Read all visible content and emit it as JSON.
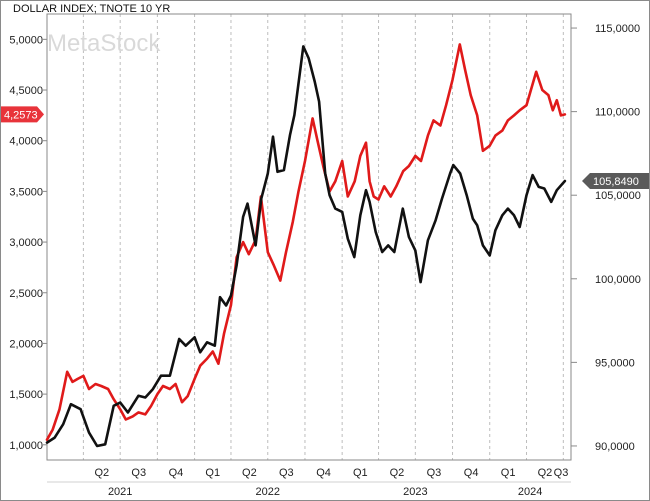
{
  "title": "DOLLAR INDEX; TNOTE 10 YR",
  "watermark": "MetaStock",
  "colors": {
    "dollar_index": "#111111",
    "tnote": "#e01a1a",
    "grid": "#bdbdbd",
    "frame": "#8a8a8a",
    "dollar_tag": "#5a5a5a",
    "tnote_tag": "#e8333a"
  },
  "chart_data": {
    "type": "line",
    "grid": true,
    "left_axis": {
      "ylim": [
        0.85,
        5.25
      ],
      "ticks": [
        "5,0000",
        "4,5000",
        "4,0000",
        "3,5000",
        "3,0000",
        "2,5000",
        "2,0000",
        "1,5000",
        "1,0000"
      ],
      "values": [
        5.0,
        4.5,
        4.0,
        3.5,
        3.0,
        2.5,
        2.0,
        1.5,
        1.0
      ]
    },
    "right_axis": {
      "ylim": [
        89.16,
        115.84
      ],
      "ticks": [
        "115,0000",
        "110,0000",
        "105,0000",
        "100,0000",
        "95,0000",
        "90,0000"
      ],
      "values": [
        115,
        110,
        105,
        100,
        95,
        90
      ]
    },
    "x_axis": {
      "quarters": [
        "Q2",
        "Q3",
        "Q4",
        "Q1",
        "Q2",
        "Q3",
        "Q4",
        "Q1",
        "Q2",
        "Q3",
        "Q4",
        "Q1",
        "Q2",
        "Q3"
      ],
      "years": [
        "2021",
        "2022",
        "2023",
        "2024"
      ]
    },
    "last_values": {
      "tnote": "4,2573",
      "dollar_index": "105,8490"
    },
    "series": [
      {
        "key": "tnote",
        "axis": "left",
        "x": [
          "2021-01-01",
          "2021-01-15",
          "2021-02-01",
          "2021-02-20",
          "2021-03-05",
          "2021-03-18",
          "2021-04-01",
          "2021-04-15",
          "2021-05-01",
          "2021-05-15",
          "2021-06-01",
          "2021-06-15",
          "2021-07-01",
          "2021-07-15",
          "2021-08-01",
          "2021-08-15",
          "2021-09-01",
          "2021-09-15",
          "2021-10-01",
          "2021-10-15",
          "2021-11-01",
          "2021-11-15",
          "2021-12-01",
          "2021-12-15",
          "2022-01-01",
          "2022-01-15",
          "2022-02-01",
          "2022-02-15",
          "2022-03-01",
          "2022-03-15",
          "2022-04-01",
          "2022-04-15",
          "2022-05-01",
          "2022-05-15",
          "2022-06-01",
          "2022-06-14",
          "2022-07-01",
          "2022-07-15",
          "2022-08-01",
          "2022-08-15",
          "2022-09-01",
          "2022-09-15",
          "2022-10-01",
          "2022-10-20",
          "2022-11-01",
          "2022-11-15",
          "2022-12-01",
          "2022-12-15",
          "2023-01-01",
          "2023-01-15",
          "2023-02-01",
          "2023-02-15",
          "2023-03-01",
          "2023-03-10",
          "2023-03-20",
          "2023-04-01",
          "2023-04-15",
          "2023-05-01",
          "2023-05-15",
          "2023-06-01",
          "2023-06-15",
          "2023-07-01",
          "2023-07-15",
          "2023-08-01",
          "2023-08-15",
          "2023-09-01",
          "2023-09-15",
          "2023-10-01",
          "2023-10-19",
          "2023-11-01",
          "2023-11-15",
          "2023-12-01",
          "2023-12-15",
          "2024-01-01",
          "2024-01-15",
          "2024-02-01",
          "2024-02-15",
          "2024-03-01",
          "2024-03-15",
          "2024-04-01",
          "2024-04-25",
          "2024-05-10",
          "2024-05-25",
          "2024-06-05",
          "2024-06-15",
          "2024-06-25",
          "2024-07-05"
        ],
        "values": [
          1.05,
          1.15,
          1.35,
          1.72,
          1.62,
          1.65,
          1.68,
          1.55,
          1.6,
          1.58,
          1.55,
          1.45,
          1.35,
          1.25,
          1.28,
          1.32,
          1.3,
          1.38,
          1.5,
          1.58,
          1.55,
          1.6,
          1.42,
          1.48,
          1.65,
          1.78,
          1.85,
          1.92,
          1.8,
          2.1,
          2.38,
          2.85,
          3.0,
          2.88,
          3.02,
          3.45,
          2.9,
          2.78,
          2.62,
          2.9,
          3.2,
          3.5,
          3.8,
          4.22,
          4.0,
          3.75,
          3.5,
          3.6,
          3.8,
          3.45,
          3.6,
          3.85,
          3.98,
          3.6,
          3.45,
          3.42,
          3.55,
          3.45,
          3.55,
          3.7,
          3.75,
          3.85,
          3.8,
          4.05,
          4.2,
          4.15,
          4.35,
          4.6,
          4.95,
          4.7,
          4.45,
          4.25,
          3.9,
          3.95,
          4.05,
          4.1,
          4.2,
          4.25,
          4.3,
          4.35,
          4.68,
          4.5,
          4.45,
          4.3,
          4.4,
          4.25,
          4.26
        ]
      },
      {
        "key": "dollar_index",
        "axis": "right",
        "x": [
          "2021-01-01",
          "2021-01-20",
          "2021-02-10",
          "2021-03-01",
          "2021-03-25",
          "2021-04-15",
          "2021-05-05",
          "2021-05-25",
          "2021-06-15",
          "2021-07-01",
          "2021-07-20",
          "2021-08-15",
          "2021-09-01",
          "2021-09-20",
          "2021-10-10",
          "2021-11-01",
          "2021-11-24",
          "2021-12-10",
          "2022-01-01",
          "2022-01-15",
          "2022-02-01",
          "2022-02-20",
          "2022-03-05",
          "2022-03-20",
          "2022-04-01",
          "2022-04-15",
          "2022-05-01",
          "2022-05-12",
          "2022-06-01",
          "2022-06-15",
          "2022-07-01",
          "2022-07-14",
          "2022-07-25",
          "2022-08-10",
          "2022-08-25",
          "2022-09-05",
          "2022-09-27",
          "2022-10-10",
          "2022-10-25",
          "2022-11-05",
          "2022-11-20",
          "2022-12-01",
          "2022-12-15",
          "2023-01-01",
          "2023-01-15",
          "2023-01-31",
          "2023-02-15",
          "2023-03-01",
          "2023-03-10",
          "2023-03-25",
          "2023-04-10",
          "2023-04-25",
          "2023-05-10",
          "2023-05-31",
          "2023-06-15",
          "2023-07-01",
          "2023-07-14",
          "2023-08-01",
          "2023-08-20",
          "2023-09-05",
          "2023-09-25",
          "2023-10-03",
          "2023-10-20",
          "2023-11-05",
          "2023-11-20",
          "2023-12-01",
          "2023-12-15",
          "2024-01-01",
          "2024-01-15",
          "2024-02-01",
          "2024-02-15",
          "2024-03-01",
          "2024-03-15",
          "2024-04-01",
          "2024-04-16",
          "2024-05-01",
          "2024-05-15",
          "2024-06-01",
          "2024-06-15",
          "2024-07-05"
        ],
        "values": [
          90.2,
          90.5,
          91.3,
          92.5,
          92.2,
          90.8,
          90.0,
          90.1,
          92.4,
          92.6,
          92.0,
          93.0,
          92.9,
          93.4,
          94.2,
          94.2,
          96.4,
          96.0,
          96.5,
          95.6,
          96.2,
          96.0,
          98.9,
          98.4,
          99.0,
          100.8,
          103.7,
          104.5,
          102.0,
          104.8,
          106.3,
          108.5,
          106.4,
          106.5,
          108.6,
          109.8,
          113.9,
          113.2,
          111.8,
          110.6,
          106.3,
          105.0,
          104.2,
          104.0,
          102.4,
          101.3,
          103.8,
          105.3,
          104.6,
          102.8,
          101.6,
          102.0,
          101.6,
          104.2,
          102.5,
          101.7,
          99.8,
          102.3,
          103.5,
          104.8,
          106.3,
          106.8,
          106.3,
          105.0,
          103.6,
          103.2,
          102.0,
          101.4,
          102.9,
          103.8,
          104.2,
          103.8,
          103.1,
          105.0,
          106.2,
          105.5,
          105.4,
          104.6,
          105.3,
          105.85
        ]
      }
    ]
  }
}
